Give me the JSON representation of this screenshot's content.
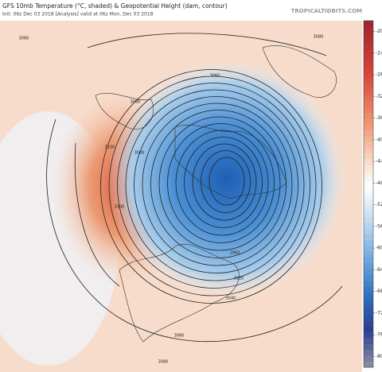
{
  "title": "GFS 10mb Temperature (°C, shaded) & Geopotential Height (dam, contour)",
  "subtitle": "Init: 06z Dec 03 2018   [Analysis]   valid at 06z Mon, Dec 03 2018",
  "watermark": "TROPICALTIDBITS.COM",
  "colorbar": {
    "range": [
      -82,
      -18
    ],
    "ticks": [
      -20,
      -24,
      -28,
      -32,
      -36,
      -40,
      -44,
      -48,
      -52,
      -56,
      -60,
      -64,
      -68,
      -72,
      -76,
      -80
    ]
  },
  "contour_labels": [
    "3080",
    "3080",
    "3060",
    "3080",
    "3100",
    "3080",
    "3100",
    "2960",
    "3020",
    "3040",
    "3080",
    "3080"
  ]
}
